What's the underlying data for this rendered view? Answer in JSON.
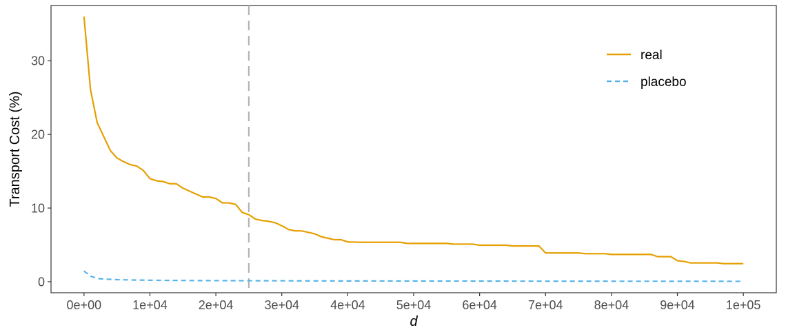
{
  "chart_data": {
    "type": "line",
    "xlabel": "d",
    "ylabel": "Transport Cost (%)",
    "xlim": [
      -5000,
      105000
    ],
    "ylim": [
      -1.5,
      37.5
    ],
    "x_ticks": [
      0,
      10000,
      20000,
      30000,
      40000,
      50000,
      60000,
      70000,
      80000,
      90000,
      100000
    ],
    "x_tick_labels": [
      "0e+00",
      "1e+04",
      "2e+04",
      "3e+04",
      "4e+04",
      "5e+04",
      "6e+04",
      "7e+04",
      "8e+04",
      "9e+04",
      "1e+05"
    ],
    "y_ticks": [
      0,
      10,
      20,
      30
    ],
    "y_tick_labels": [
      "0",
      "10",
      "20",
      "30"
    ],
    "grid": false,
    "legend_position": "top-right",
    "reference_line": {
      "orientation": "vertical",
      "x": 25000,
      "style": "dashed",
      "color": "#b3b3b3"
    },
    "series": [
      {
        "name": "real",
        "color": "#E69F00",
        "style": "solid",
        "points": [
          [
            0,
            36.0
          ],
          [
            1000,
            26.0
          ],
          [
            2000,
            21.6
          ],
          [
            3000,
            19.7
          ],
          [
            4000,
            17.8
          ],
          [
            5000,
            16.8
          ],
          [
            6000,
            16.3
          ],
          [
            7000,
            15.9
          ],
          [
            8000,
            15.7
          ],
          [
            9000,
            15.1
          ],
          [
            10000,
            14.0
          ],
          [
            11000,
            13.7
          ],
          [
            12000,
            13.6
          ],
          [
            13000,
            13.3
          ],
          [
            14000,
            13.3
          ],
          [
            15000,
            12.7
          ],
          [
            16000,
            12.3
          ],
          [
            17000,
            11.9
          ],
          [
            18000,
            11.5
          ],
          [
            19000,
            11.5
          ],
          [
            20000,
            11.3
          ],
          [
            21000,
            10.7
          ],
          [
            22000,
            10.7
          ],
          [
            23000,
            10.5
          ],
          [
            24000,
            9.4
          ],
          [
            25000,
            9.1
          ],
          [
            26000,
            8.5
          ],
          [
            27000,
            8.3
          ],
          [
            28000,
            8.2
          ],
          [
            29000,
            8.0
          ],
          [
            30000,
            7.6
          ],
          [
            31000,
            7.1
          ],
          [
            32000,
            6.9
          ],
          [
            33000,
            6.9
          ],
          [
            34000,
            6.7
          ],
          [
            35000,
            6.5
          ],
          [
            36000,
            6.1
          ],
          [
            37000,
            5.9
          ],
          [
            38000,
            5.7
          ],
          [
            39000,
            5.7
          ],
          [
            40000,
            5.4
          ],
          [
            42000,
            5.35
          ],
          [
            44000,
            5.35
          ],
          [
            48000,
            5.35
          ],
          [
            49000,
            5.2
          ],
          [
            55000,
            5.2
          ],
          [
            56000,
            5.1
          ],
          [
            59000,
            5.1
          ],
          [
            60000,
            4.95
          ],
          [
            64000,
            4.95
          ],
          [
            65000,
            4.85
          ],
          [
            69000,
            4.85
          ],
          [
            70000,
            3.9
          ],
          [
            75000,
            3.9
          ],
          [
            76000,
            3.8
          ],
          [
            79000,
            3.8
          ],
          [
            80000,
            3.7
          ],
          [
            86000,
            3.7
          ],
          [
            87000,
            3.4
          ],
          [
            89000,
            3.4
          ],
          [
            90000,
            2.85
          ],
          [
            91000,
            2.75
          ],
          [
            92000,
            2.55
          ],
          [
            96000,
            2.55
          ],
          [
            97000,
            2.45
          ],
          [
            100000,
            2.45
          ]
        ]
      },
      {
        "name": "placebo",
        "color": "#56B4E9",
        "style": "dashed",
        "points": [
          [
            0,
            1.45
          ],
          [
            1000,
            0.75
          ],
          [
            2000,
            0.45
          ],
          [
            3000,
            0.35
          ],
          [
            5000,
            0.28
          ],
          [
            8000,
            0.22
          ],
          [
            12000,
            0.18
          ],
          [
            18000,
            0.15
          ],
          [
            25000,
            0.13
          ],
          [
            35000,
            0.11
          ],
          [
            50000,
            0.09
          ],
          [
            70000,
            0.07
          ],
          [
            100000,
            0.05
          ]
        ]
      }
    ]
  }
}
